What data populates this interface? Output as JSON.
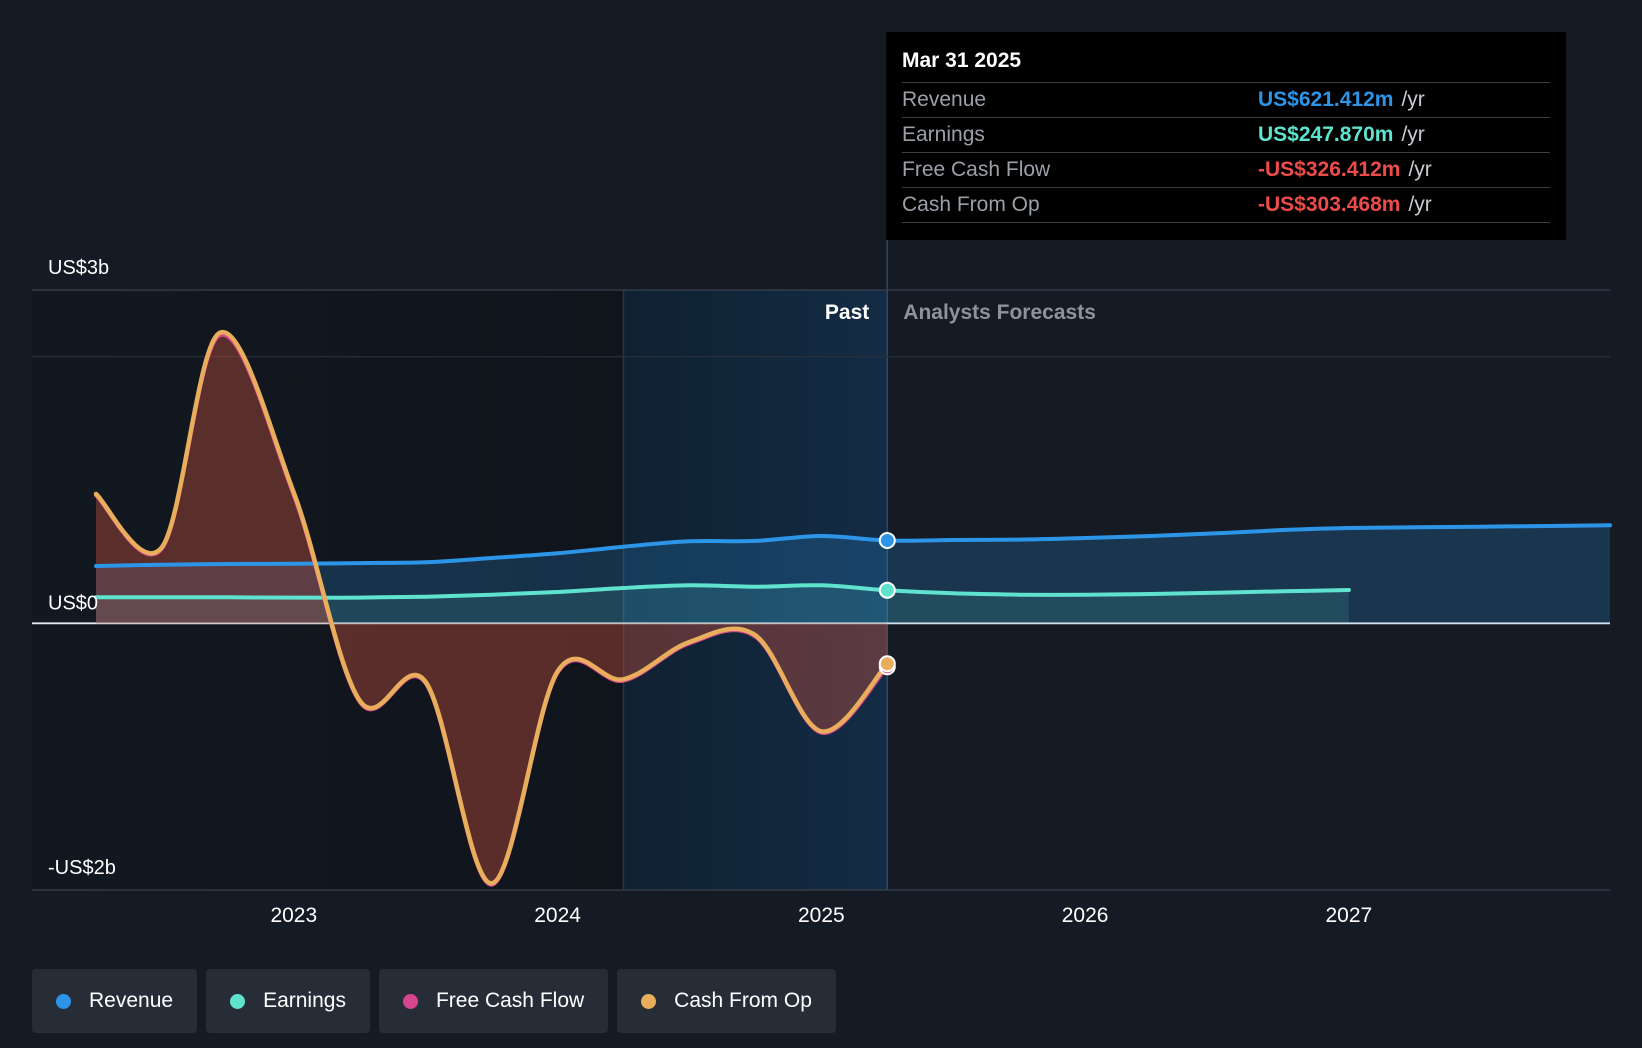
{
  "tooltip": {
    "date": "Mar 31 2025",
    "rows": [
      {
        "label": "Revenue",
        "value": "US$621.412m",
        "unit": "/yr",
        "color": "#2d95e8"
      },
      {
        "label": "Earnings",
        "value": "US$247.870m",
        "unit": "/yr",
        "color": "#5fe3cf"
      },
      {
        "label": "Free Cash Flow",
        "value": "-US$326.412m",
        "unit": "/yr",
        "color": "#ee4b4b"
      },
      {
        "label": "Cash From Op",
        "value": "-US$303.468m",
        "unit": "/yr",
        "color": "#ee4b4b"
      }
    ]
  },
  "sections": {
    "past": "Past",
    "forecast": "Analysts Forecasts"
  },
  "legend": [
    {
      "label": "Revenue",
      "color": "#2d95e8"
    },
    {
      "label": "Earnings",
      "color": "#5fe3cf"
    },
    {
      "label": "Free Cash Flow",
      "color": "#d6458f"
    },
    {
      "label": "Cash From Op",
      "color": "#e8ae5c"
    }
  ],
  "chart_data": {
    "type": "line",
    "y_tick_labels": [
      {
        "value": 3000,
        "label": "US$3b"
      },
      {
        "value": 0,
        "label": "US$0"
      },
      {
        "value": -2000,
        "label": "-US$2b"
      }
    ],
    "x_ticks": [
      2023,
      2024,
      2025,
      2026,
      2027
    ],
    "xlim": [
      2022.25,
      2027.99
    ],
    "ylim": [
      -2000,
      2500
    ],
    "past_end": 2025.25,
    "highlight_start": 2024.25,
    "grid": true,
    "legend_position": "bottom-left",
    "series": [
      {
        "name": "Revenue",
        "color": "#2d95e8",
        "x": [
          2022.25,
          2022.5,
          2022.75,
          2023.0,
          2023.25,
          2023.5,
          2023.75,
          2024.0,
          2024.25,
          2024.5,
          2024.75,
          2025.0,
          2025.25,
          2025.5,
          2025.75,
          2026.0,
          2026.25,
          2026.5,
          2026.75,
          2027.0,
          2027.25,
          2027.5,
          2027.75,
          2027.99
        ],
        "y": [
          430,
          440,
          445,
          447,
          452,
          458,
          490,
          525,
          575,
          615,
          618,
          655,
          621,
          625,
          628,
          640,
          655,
          675,
          700,
          715,
          720,
          725,
          730,
          735
        ]
      },
      {
        "name": "Earnings",
        "color": "#5fe3cf",
        "x": [
          2022.25,
          2022.5,
          2022.75,
          2023.0,
          2023.25,
          2023.5,
          2023.75,
          2024.0,
          2024.25,
          2024.5,
          2024.75,
          2025.0,
          2025.25,
          2025.5,
          2025.75,
          2026.0,
          2026.25,
          2026.5,
          2026.75,
          2027.0
        ],
        "y": [
          195,
          195,
          195,
          193,
          193,
          200,
          215,
          235,
          265,
          285,
          275,
          285,
          248,
          225,
          215,
          215,
          220,
          230,
          240,
          250
        ]
      },
      {
        "name": "Free Cash Flow",
        "color": "#d6458f",
        "x": [
          2022.25,
          2022.5,
          2022.72,
          2023.0,
          2023.25,
          2023.5,
          2023.75,
          2024.0,
          2024.25,
          2024.5,
          2024.75,
          2025.0,
          2025.25
        ],
        "y": [
          960,
          560,
          2160,
          960,
          -590,
          -450,
          -1960,
          -370,
          -430,
          -150,
          -100,
          -820,
          -326
        ]
      },
      {
        "name": "Cash From Op",
        "color": "#e8ae5c",
        "x": [
          2022.25,
          2022.5,
          2022.72,
          2023.0,
          2023.25,
          2023.5,
          2023.75,
          2024.0,
          2024.25,
          2024.5,
          2024.75,
          2025.0,
          2025.25
        ],
        "y": [
          970,
          570,
          2180,
          980,
          -580,
          -440,
          -1950,
          -360,
          -420,
          -140,
          -90,
          -810,
          -303
        ]
      }
    ]
  }
}
